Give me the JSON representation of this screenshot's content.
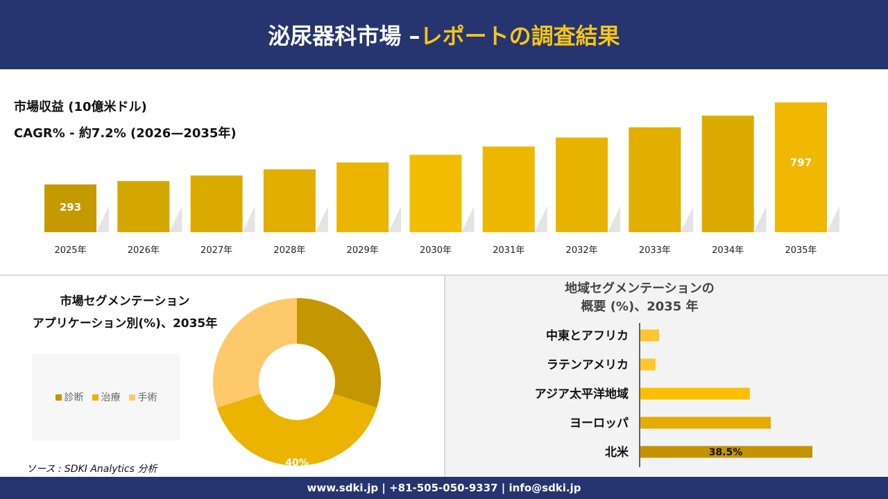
{
  "header": {
    "title_main": "泌尿器科市場 –",
    "title_accent": "レポートの調査結果"
  },
  "revenue": {
    "label": "市場収益 (10億米ドル)",
    "cagr": "CAGR% - 約7.2% (2026—2035年)"
  },
  "chart_data": [
    {
      "type": "bar",
      "categories": [
        "2025年",
        "2026年",
        "2027年",
        "2028年",
        "2029年",
        "2030年",
        "2031年",
        "2032年",
        "2033年",
        "2034年",
        "2035年"
      ],
      "values": [
        293,
        314,
        348,
        386,
        428,
        475,
        526,
        581,
        644,
        716,
        797
      ],
      "data_labels": {
        "0": "293",
        "10": "797"
      },
      "colors": [
        "#c49a00",
        "#d4a700",
        "#dcab00",
        "#e2ae00",
        "#eab400",
        "#f2bc00",
        "#efb800",
        "#e8b200",
        "#e2ae00",
        "#dcab00",
        "#f0b800"
      ],
      "ylim": [
        0,
        800
      ],
      "grid": false
    },
    {
      "type": "pie",
      "title": "市場セグメンテーション\nアプリケーション別(%)、2035年",
      "categories": [
        "診断",
        "治療",
        "手術"
      ],
      "values": [
        30,
        40,
        30
      ],
      "colors": [
        "#c49600",
        "#eab400",
        "#fdc96a"
      ],
      "data_labels": {
        "1": "40%"
      },
      "legend": "left"
    },
    {
      "type": "bar",
      "orientation": "horizontal",
      "title": "地域セグメンテーションの\n概要 (%)、2035 年",
      "categories": [
        "中東とアフリカ",
        "ラテンアメリカ",
        "アジア太平洋地域",
        "ヨーロッパ",
        "北米"
      ],
      "values": [
        4.2,
        3.4,
        24.5,
        29.2,
        38.5
      ],
      "colors": [
        "#fdc52e",
        "#fdc52e",
        "#fbbf00",
        "#e3ac00",
        "#c49300"
      ],
      "data_labels": {
        "4": "38.5%"
      },
      "xlim": [
        0,
        40
      ]
    }
  ],
  "segment": {
    "title_line1": "市場セグメンテーション",
    "title_line2": "アプリケーション別(%)、2035年"
  },
  "region": {
    "title_line1": "地域セグメンテーションの",
    "title_line2": "概要 (%)、2035 年"
  },
  "source": "ソース : SDKI Analytics 分析",
  "footer": "www.sdki.jp | +81-505-050-9337 | info@sdki.jp"
}
